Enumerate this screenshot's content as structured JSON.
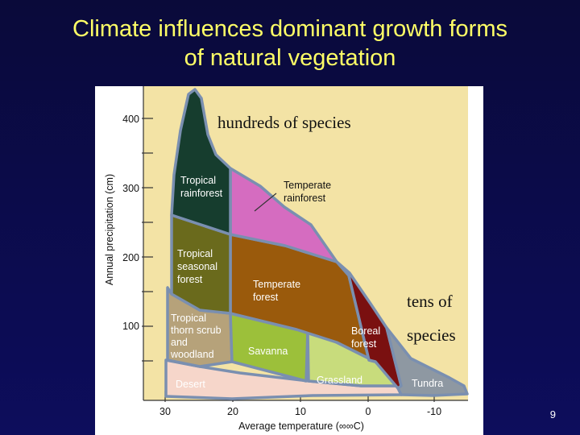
{
  "slide": {
    "title_line1": "Climate influences dominant growth forms",
    "title_line2": "of natural vegetation",
    "page_number": "9"
  },
  "notes": {
    "top": "hundreds of species",
    "right_line1": "tens of",
    "right_line2": "species"
  },
  "colors": {
    "background": "#0b0b4a",
    "title": "#ffff66",
    "panel": "#f3e3a5",
    "outline": "#7a8fb0",
    "tropical_rainforest": "#163d2e",
    "temperate_rainforest": "#d56cc0",
    "tropical_seasonal_forest": "#6a6a1c",
    "temperate_forest": "#9a5a0c",
    "boreal_forest": "#7a1010",
    "tropical_thorn_scrub": "#b6a27a",
    "savanna": "#9cc03a",
    "grassland": "#c8dc7c",
    "desert": "#f6d6ca",
    "tundra": "#8e98a2"
  },
  "chart_data": {
    "type": "whittaker-biome-diagram",
    "xlabel": "Average temperature (∞∞C)",
    "ylabel": "Annual precipitation (cm)",
    "x_ticks": [
      "30",
      "20",
      "10",
      "0",
      "-10"
    ],
    "y_ticks": [
      "100",
      "200",
      "300",
      "400"
    ],
    "biomes": [
      "Tropical rainforest",
      "Temperate rainforest",
      "Tropical seasonal forest",
      "Temperate forest",
      "Tropical thorn scrub and woodland",
      "Savanna",
      "Boreal forest",
      "Grassland",
      "Desert",
      "Tundra"
    ]
  }
}
